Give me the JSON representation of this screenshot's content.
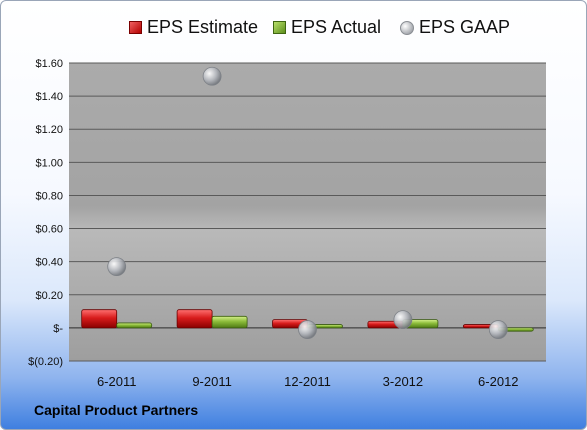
{
  "company": "Capital Product Partners",
  "legend": {
    "estimate": "EPS Estimate",
    "actual": "EPS Actual",
    "gaap": "EPS GAAP"
  },
  "colors": {
    "estimate": "#c00000",
    "actual": "#7fb030",
    "gaap": "#b8bcc2"
  },
  "chart_data": {
    "type": "bar",
    "categories": [
      "6-2011",
      "9-2011",
      "12-2011",
      "3-2012",
      "6-2012"
    ],
    "series": [
      {
        "name": "EPS Estimate",
        "kind": "bar",
        "values": [
          0.11,
          0.11,
          0.05,
          0.04,
          0.02
        ]
      },
      {
        "name": "EPS Actual",
        "kind": "bar",
        "values": [
          0.03,
          0.07,
          0.02,
          0.05,
          -0.02
        ]
      },
      {
        "name": "EPS GAAP",
        "kind": "marker",
        "values": [
          0.37,
          1.52,
          -0.01,
          0.05,
          -0.01
        ]
      }
    ],
    "ylim": [
      -0.2,
      1.6
    ],
    "yticks": [
      -0.2,
      0,
      0.2,
      0.4,
      0.6,
      0.8,
      1.0,
      1.2,
      1.4,
      1.6
    ],
    "ytick_labels": [
      "$(0.20)",
      "$-",
      "$0.20",
      "$0.40",
      "$0.60",
      "$0.80",
      "$1.00",
      "$1.20",
      "$1.40",
      "$1.60"
    ],
    "grid": true,
    "legend_position": "top"
  }
}
